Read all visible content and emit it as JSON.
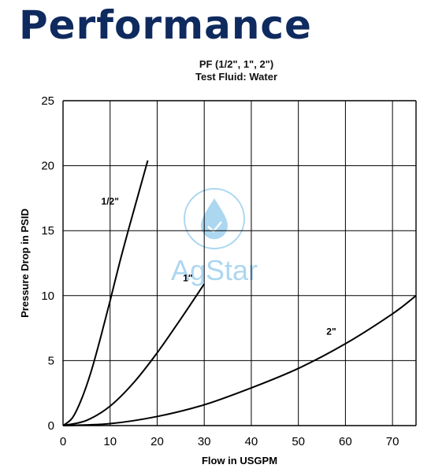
{
  "heading": "Performance",
  "colors": {
    "heading": "#0f2a5e",
    "watermark": "#4aa8e0"
  },
  "watermark": {
    "text": "AgStar",
    "icon": "water-drop-icon"
  },
  "chart_data": {
    "type": "line",
    "title": "PF (1/2\", 1\", 2\")",
    "subtitle": "Test Fluid: Water",
    "xlabel": "Flow in USGPM",
    "ylabel": "Pressure Drop in PSID",
    "xlim": [
      0,
      75
    ],
    "ylim": [
      0,
      25
    ],
    "xticks": [
      0,
      10,
      20,
      30,
      40,
      50,
      60,
      70
    ],
    "yticks": [
      0,
      5,
      10,
      15,
      20,
      25
    ],
    "grid": true,
    "series": [
      {
        "name": "1/2\"",
        "x": [
          0,
          2,
          4,
          6,
          8,
          10,
          12,
          14,
          16,
          18
        ],
        "y": [
          0,
          0.6,
          2.1,
          4.2,
          6.8,
          9.6,
          12.5,
          15.2,
          17.8,
          20.4
        ]
      },
      {
        "name": "1\"",
        "x": [
          0,
          5,
          10,
          15,
          20,
          25,
          30
        ],
        "y": [
          0,
          0.4,
          1.5,
          3.3,
          5.6,
          8.2,
          10.9
        ]
      },
      {
        "name": "2\"",
        "x": [
          0,
          10,
          20,
          30,
          40,
          50,
          60,
          70,
          75
        ],
        "y": [
          0,
          0.15,
          0.7,
          1.6,
          2.9,
          4.4,
          6.3,
          8.6,
          10.0
        ]
      }
    ],
    "labels": [
      {
        "text": "1/2\"",
        "x": 10,
        "y": 17
      },
      {
        "text": "1\"",
        "x": 26.5,
        "y": 11.1
      },
      {
        "text": "2\"",
        "x": 57,
        "y": 7
      }
    ]
  }
}
